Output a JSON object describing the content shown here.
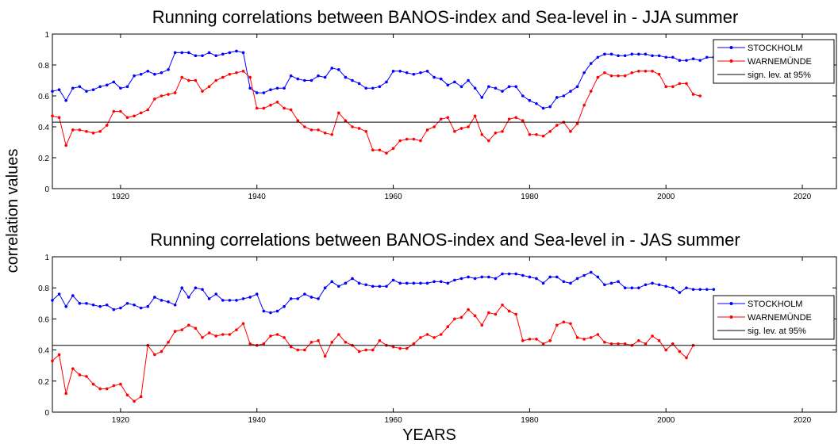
{
  "figure": {
    "ylabel": "correlation values",
    "xlabel": "YEARS"
  },
  "chart_data": [
    {
      "type": "line",
      "title": "Running correlations between BANOS-index and Sea-level in - JJA summer",
      "xlim": [
        1910,
        2025
      ],
      "ylim": [
        0,
        1
      ],
      "xticks": [
        1920,
        1940,
        1960,
        1980,
        2000,
        2020
      ],
      "yticks": [
        0,
        0.2,
        0.4,
        0.6,
        0.8,
        1
      ],
      "grid": false,
      "legend_position": "top-right",
      "x_start": 1910,
      "series": [
        {
          "name": "STOCKHOLM",
          "color": "#0000ff",
          "values": [
            0.63,
            0.64,
            0.57,
            0.65,
            0.66,
            0.63,
            0.64,
            0.66,
            0.67,
            0.69,
            0.65,
            0.66,
            0.73,
            0.74,
            0.76,
            0.74,
            0.75,
            0.77,
            0.88,
            0.88,
            0.88,
            0.86,
            0.86,
            0.88,
            0.86,
            0.87,
            0.88,
            0.89,
            0.88,
            0.65,
            0.62,
            0.62,
            0.64,
            0.65,
            0.65,
            0.73,
            0.71,
            0.7,
            0.7,
            0.73,
            0.72,
            0.78,
            0.77,
            0.72,
            0.7,
            0.68,
            0.65,
            0.65,
            0.66,
            0.69,
            0.76,
            0.76,
            0.75,
            0.74,
            0.75,
            0.76,
            0.72,
            0.71,
            0.67,
            0.69,
            0.66,
            0.7,
            0.65,
            0.59,
            0.66,
            0.65,
            0.63,
            0.66,
            0.66,
            0.6,
            0.57,
            0.55,
            0.52,
            0.53,
            0.59,
            0.6,
            0.63,
            0.66,
            0.75,
            0.81,
            0.85,
            0.87,
            0.87,
            0.86,
            0.86,
            0.87,
            0.87,
            0.87,
            0.86,
            0.86,
            0.85,
            0.85,
            0.83,
            0.83,
            0.84,
            0.83,
            0.85,
            0.85
          ]
        },
        {
          "name": "WARNEMÜNDE",
          "color": "#ff0000",
          "values": [
            0.47,
            0.46,
            0.28,
            0.38,
            0.38,
            0.37,
            0.36,
            0.37,
            0.41,
            0.5,
            0.5,
            0.46,
            0.47,
            0.49,
            0.51,
            0.58,
            0.6,
            0.61,
            0.62,
            0.72,
            0.7,
            0.7,
            0.63,
            0.66,
            0.7,
            0.72,
            0.74,
            0.75,
            0.76,
            0.72,
            0.52,
            0.52,
            0.54,
            0.56,
            0.52,
            0.51,
            0.44,
            0.4,
            0.38,
            0.38,
            0.36,
            0.35,
            0.49,
            0.44,
            0.4,
            0.39,
            0.37,
            0.25,
            0.25,
            0.23,
            0.26,
            0.31,
            0.32,
            0.32,
            0.31,
            0.38,
            0.4,
            0.45,
            0.46,
            0.37,
            0.39,
            0.4,
            0.47,
            0.35,
            0.31,
            0.36,
            0.37,
            0.45,
            0.46,
            0.44,
            0.35,
            0.35,
            0.34,
            0.37,
            0.41,
            0.43,
            0.37,
            0.42,
            0.54,
            0.63,
            0.72,
            0.75,
            0.73,
            0.73,
            0.73,
            0.75,
            0.76,
            0.76,
            0.76,
            0.74,
            0.66,
            0.66,
            0.68,
            0.68,
            0.61,
            0.6
          ]
        },
        {
          "name": "sign. lev. at 95%",
          "color": "#000000",
          "constant": 0.43
        }
      ]
    },
    {
      "type": "line",
      "title": "Running correlations between BANOS-index and Sea-level in - JAS summer",
      "xlim": [
        1910,
        2025
      ],
      "ylim": [
        0,
        1
      ],
      "xticks": [
        1920,
        1940,
        1960,
        1980,
        2000,
        2020
      ],
      "yticks": [
        0,
        0.2,
        0.4,
        0.6,
        0.8,
        1
      ],
      "grid": false,
      "legend_position": "right",
      "x_start": 1910,
      "series": [
        {
          "name": "STOCKHOLM",
          "color": "#0000ff",
          "values": [
            0.72,
            0.76,
            0.68,
            0.75,
            0.7,
            0.7,
            0.69,
            0.68,
            0.69,
            0.66,
            0.67,
            0.7,
            0.69,
            0.67,
            0.68,
            0.74,
            0.72,
            0.71,
            0.69,
            0.8,
            0.74,
            0.8,
            0.79,
            0.73,
            0.76,
            0.72,
            0.72,
            0.72,
            0.73,
            0.74,
            0.76,
            0.65,
            0.64,
            0.65,
            0.68,
            0.73,
            0.73,
            0.76,
            0.74,
            0.73,
            0.8,
            0.84,
            0.81,
            0.83,
            0.86,
            0.83,
            0.82,
            0.81,
            0.81,
            0.81,
            0.85,
            0.83,
            0.83,
            0.83,
            0.83,
            0.83,
            0.84,
            0.84,
            0.83,
            0.85,
            0.86,
            0.87,
            0.86,
            0.87,
            0.87,
            0.86,
            0.89,
            0.89,
            0.89,
            0.88,
            0.87,
            0.86,
            0.83,
            0.87,
            0.87,
            0.84,
            0.83,
            0.86,
            0.88,
            0.9,
            0.87,
            0.82,
            0.83,
            0.84,
            0.8,
            0.8,
            0.8,
            0.82,
            0.83,
            0.82,
            0.81,
            0.8,
            0.77,
            0.8,
            0.79,
            0.79,
            0.79,
            0.79
          ]
        },
        {
          "name": "WARNEMÜNDE",
          "color": "#ff0000",
          "values": [
            0.33,
            0.37,
            0.12,
            0.28,
            0.24,
            0.23,
            0.18,
            0.15,
            0.15,
            0.17,
            0.18,
            0.11,
            0.07,
            0.1,
            0.43,
            0.37,
            0.39,
            0.45,
            0.52,
            0.53,
            0.56,
            0.54,
            0.48,
            0.51,
            0.49,
            0.5,
            0.5,
            0.53,
            0.57,
            0.44,
            0.43,
            0.44,
            0.49,
            0.5,
            0.48,
            0.42,
            0.4,
            0.4,
            0.45,
            0.46,
            0.36,
            0.45,
            0.5,
            0.45,
            0.43,
            0.39,
            0.4,
            0.4,
            0.46,
            0.43,
            0.42,
            0.41,
            0.41,
            0.44,
            0.48,
            0.5,
            0.48,
            0.5,
            0.55,
            0.6,
            0.61,
            0.66,
            0.62,
            0.56,
            0.64,
            0.63,
            0.69,
            0.65,
            0.63,
            0.46,
            0.47,
            0.47,
            0.44,
            0.46,
            0.56,
            0.58,
            0.57,
            0.48,
            0.47,
            0.48,
            0.5,
            0.45,
            0.44,
            0.44,
            0.44,
            0.43,
            0.46,
            0.44,
            0.49,
            0.46,
            0.4,
            0.44,
            0.39,
            0.35,
            0.43
          ]
        },
        {
          "name": "sig. lev. at 95%",
          "color": "#000000",
          "constant": 0.43
        }
      ]
    }
  ]
}
